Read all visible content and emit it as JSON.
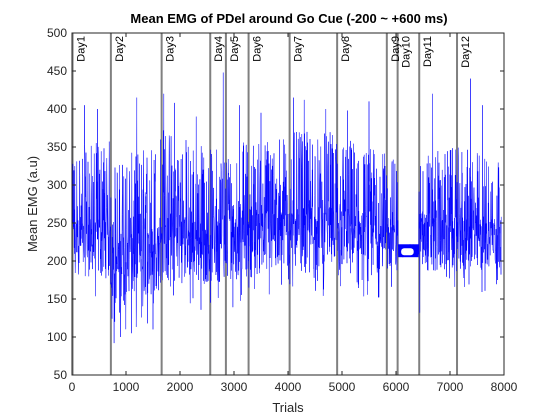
{
  "chart_data": {
    "type": "line",
    "title": "Mean EMG of PDel around Go Cue (-200 ~ +600 ms)",
    "xlabel": "Trials",
    "ylabel": "Mean EMG (a.u)",
    "xlim": [
      0,
      8000
    ],
    "ylim": [
      50,
      500
    ],
    "xticks": [
      0,
      1000,
      2000,
      3000,
      4000,
      5000,
      6000,
      7000,
      8000
    ],
    "yticks": [
      50,
      100,
      150,
      200,
      250,
      300,
      350,
      400,
      450,
      500
    ],
    "grid": false,
    "series_color": "#0000ff",
    "day_line_color": "#808080",
    "series": [
      {
        "n_trials": 7950,
        "profile": [
          {
            "x": 0,
            "low": 150,
            "mid": 220,
            "high": 350
          },
          {
            "x": 700,
            "low": 145,
            "mid": 215,
            "high": 360
          },
          {
            "x": 740,
            "low": 100,
            "mid": 190,
            "high": 330
          },
          {
            "x": 1600,
            "low": 120,
            "mid": 205,
            "high": 360
          },
          {
            "x": 1650,
            "low": 130,
            "mid": 220,
            "high": 380
          },
          {
            "x": 2550,
            "low": 135,
            "mid": 215,
            "high": 350
          },
          {
            "x": 3300,
            "low": 140,
            "mid": 225,
            "high": 360
          },
          {
            "x": 4000,
            "low": 150,
            "mid": 230,
            "high": 370
          },
          {
            "x": 5000,
            "low": 155,
            "mid": 230,
            "high": 370
          },
          {
            "x": 5850,
            "low": 150,
            "mid": 225,
            "high": 340
          },
          {
            "x": 6000,
            "low": 148,
            "mid": 220,
            "high": 335
          },
          {
            "x": 6400,
            "low": 150,
            "mid": 225,
            "high": 340
          },
          {
            "x": 7100,
            "low": 155,
            "mid": 225,
            "high": 350
          },
          {
            "x": 7950,
            "low": 150,
            "mid": 220,
            "high": 340
          }
        ],
        "plateau": {
          "x_start": 6040,
          "x_end": 6420,
          "low": 205,
          "high": 222
        },
        "spikes": [
          {
            "x": 230,
            "y": 405
          },
          {
            "x": 470,
            "y": 400
          },
          {
            "x": 900,
            "y": 445
          },
          {
            "x": 1200,
            "y": 415
          },
          {
            "x": 1700,
            "y": 420
          },
          {
            "x": 1900,
            "y": 408
          },
          {
            "x": 2300,
            "y": 390
          },
          {
            "x": 2800,
            "y": 448
          },
          {
            "x": 3100,
            "y": 405
          },
          {
            "x": 3500,
            "y": 395
          },
          {
            "x": 4100,
            "y": 415
          },
          {
            "x": 4300,
            "y": 412
          },
          {
            "x": 4700,
            "y": 400
          },
          {
            "x": 5100,
            "y": 398
          },
          {
            "x": 5500,
            "y": 410
          },
          {
            "x": 6680,
            "y": 420
          },
          {
            "x": 7380,
            "y": 440
          },
          {
            "x": 7600,
            "y": 405
          }
        ],
        "dips": [
          {
            "x": 780,
            "y": 92
          },
          {
            "x": 900,
            "y": 100
          },
          {
            "x": 1100,
            "y": 105
          },
          {
            "x": 1500,
            "y": 110
          },
          {
            "x": 6440,
            "y": 132
          }
        ]
      }
    ],
    "day_lines": [
      {
        "label": "Day1",
        "x": 10
      },
      {
        "label": "Day2",
        "x": 720
      },
      {
        "label": "Day3",
        "x": 1660
      },
      {
        "label": "Day4",
        "x": 2560
      },
      {
        "label": "Day5",
        "x": 2850
      },
      {
        "label": "Day6",
        "x": 3270
      },
      {
        "label": "Day7",
        "x": 4030
      },
      {
        "label": "Day8",
        "x": 4910
      },
      {
        "label": "Day9",
        "x": 5830
      },
      {
        "label": "Day10",
        "x": 6030
      },
      {
        "label": "Day11",
        "x": 6430
      },
      {
        "label": "Day12",
        "x": 7130
      }
    ]
  }
}
